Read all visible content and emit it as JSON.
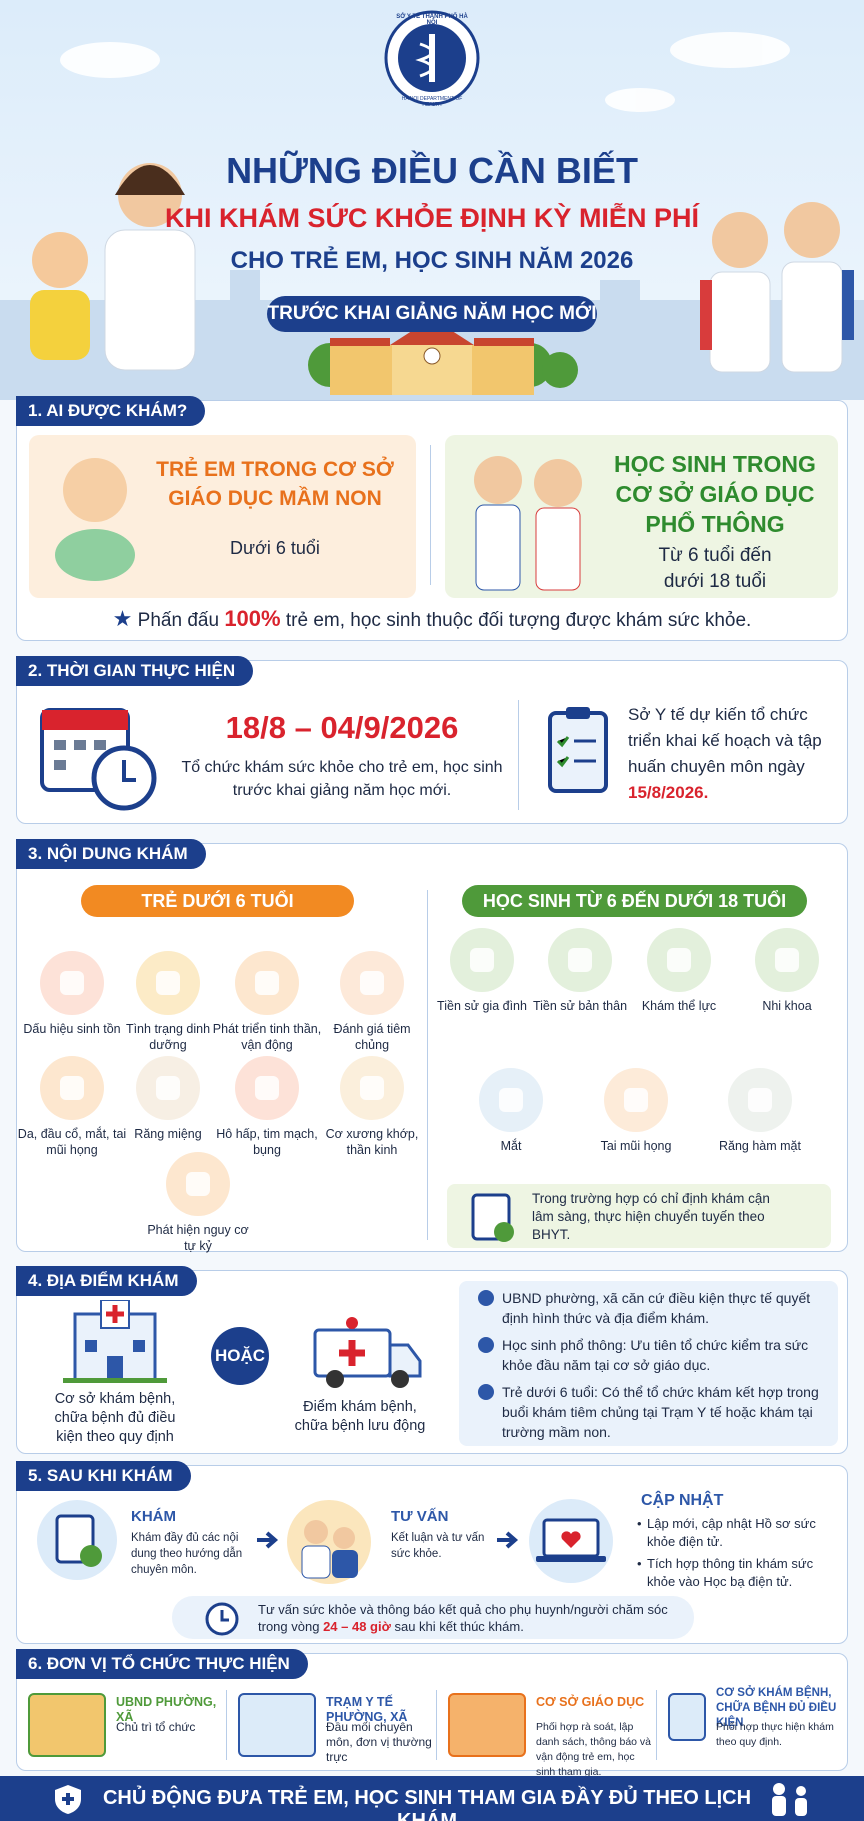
{
  "header": {
    "org_line1": "SỞ Y TẾ THÀNH PHỐ HÀ NỘI",
    "org_line2": "HA NOI DEPARTMENT OF HEALTH",
    "title": "NHỮNG ĐIỀU CẦN BIẾT",
    "subtitle1": "KHI KHÁM SỨC KHỎE ĐỊNH KỲ MIỄN PHÍ",
    "subtitle2": "CHO TRẺ EM, HỌC SINH NĂM 2026",
    "badge": "TRƯỚC KHAI GIẢNG NĂM HỌC MỚI"
  },
  "section1": {
    "title": "1. AI ĐƯỢC KHÁM?",
    "groups": [
      {
        "title": "TRẺ EM TRONG CƠ SỞ GIÁO DỤC MẦM NON",
        "detail": "Dưới 6 tuổi"
      },
      {
        "title": "HỌC SINH TRONG CƠ SỞ GIÁO DỤC PHỔ THÔNG",
        "detail": "Từ 6 tuổi đến dưới 18 tuổi"
      }
    ],
    "goal": {
      "prefix": "Phấn đấu",
      "highlight": "100%",
      "suffix": "trẻ em, học sinh thuộc đối tượng được khám sức khỏe."
    }
  },
  "section2": {
    "title": "2. THỜI GIAN THỰC HIỆN",
    "dates": "18/8 – 04/9/2026",
    "description": "Tổ chức khám sức khỏe cho trẻ em, học sinh trước khai giảng năm học mới.",
    "note": "Sở Y tế dự kiến tổ chức triển khai kế hoạch và tập huấn chuyên môn ngày",
    "note_date": "15/8/2026."
  },
  "section3": {
    "title": "3. NỘI DUNG KHÁM",
    "under6": {
      "title": "TRẺ DƯỚI 6 TUỔI",
      "items": [
        "Dấu hiệu sinh tồn",
        "Tình trạng dinh dưỡng",
        "Phát triển tinh thần, vận động",
        "Đánh giá tiêm chủng",
        "Da, đầu cổ, mắt, tai mũi họng",
        "Răng miệng",
        "Hô hấp, tim mạch, bụng",
        "Cơ xương khớp, thần kinh",
        "Phát hiện nguy cơ tự kỷ"
      ]
    },
    "over6": {
      "title": "HỌC SINH TỪ 6 ĐẾN DƯỚI 18 TUỔI",
      "items": [
        "Tiền sử gia đình",
        "Tiền sử bản thân",
        "Khám thể lực",
        "Nhi khoa",
        "Mắt",
        "Tai mũi họng",
        "Răng hàm mặt"
      ]
    },
    "note": "Trong trường hợp có chỉ định khám cận lâm sàng, thực hiện chuyển tuyến theo BHYT."
  },
  "section4": {
    "title": "4. ĐỊA ĐIỂM KHÁM",
    "place1": "Cơ sở khám bệnh, chữa bệnh đủ điều kiện theo quy định",
    "or": "HOẶC",
    "place2": "Điểm khám bệnh, chữa bệnh lưu động",
    "bullets": [
      "UBND phường, xã căn cứ điều kiện thực tế quyết định hình thức và địa điểm khám.",
      "Học sinh phổ thông: Ưu tiên tổ chức kiểm tra sức khỏe đầu năm tại cơ sở giáo dục.",
      "Trẻ dưới 6 tuổi: Có thể tổ chức khám kết hợp trong buổi khám tiêm chủng tại Trạm Y tế hoặc khám tại trường mầm non."
    ]
  },
  "section5": {
    "title": "5. SAU KHI KHÁM",
    "steps": [
      {
        "title": "KHÁM",
        "text": "Khám đầy đủ các nội dung theo hướng dẫn chuyên môn."
      },
      {
        "title": "TƯ VẤN",
        "text": "Kết luận và tư vấn sức khỏe."
      }
    ],
    "update": {
      "title": "CẬP NHẬT",
      "bullets": [
        "Lập mới, cập nhật Hồ sơ sức khỏe điện tử.",
        "Tích hợp thông tin khám sức khỏe vào Học bạ điện tử."
      ]
    },
    "note": {
      "prefix": "Tư vấn sức khỏe và thông báo kết quả cho phụ huynh/người chăm sóc trong vòng",
      "highlight": "24 – 48 giờ",
      "suffix": "sau khi kết thúc khám."
    }
  },
  "section6": {
    "title": "6. ĐƠN VỊ TỔ CHỨC THỰC HIỆN",
    "units": [
      {
        "name": "UBND PHƯỜNG, XÃ",
        "role": "Chủ trì tổ chức"
      },
      {
        "name": "TRẠM Y TẾ PHƯỜNG, XÃ",
        "role": "Đầu mối chuyên môn, đơn vị thường trực"
      },
      {
        "name": "CƠ SỞ GIÁO DỤC",
        "role": "Phối hợp rà soát, lập danh sách, thông báo và vận động trẻ em, học sinh tham gia."
      },
      {
        "name": "CƠ SỞ KHÁM BỆNH, CHỮA BỆNH ĐỦ ĐIỀU KIỆN",
        "role": "Phối hợp thực hiện khám theo quy định."
      }
    ]
  },
  "footer": "CHỦ ĐỘNG ĐƯA TRẺ EM, HỌC SINH THAM GIA ĐẦY ĐỦ THEO LỊCH KHÁM"
}
